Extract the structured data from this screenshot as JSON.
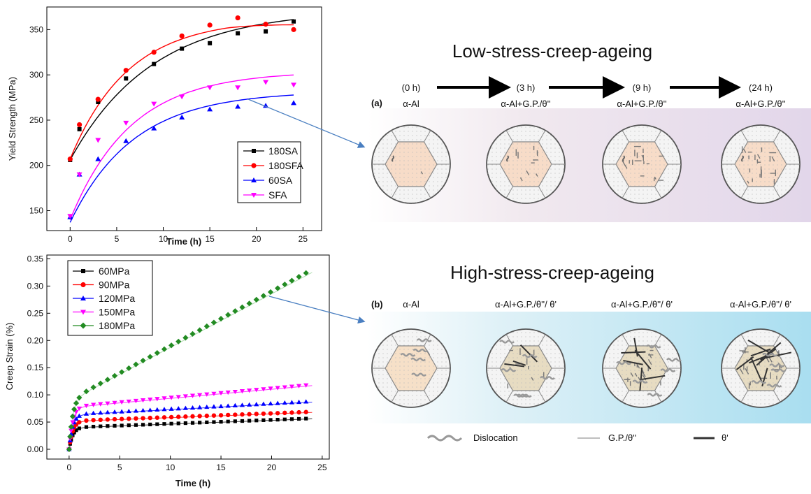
{
  "chart_data": [
    {
      "type": "scatter",
      "title": "",
      "xlabel": "Time (h)",
      "ylabel": "Yield Strength (MPa)",
      "xlim": [
        -2.5,
        27
      ],
      "ylim": [
        128,
        375
      ],
      "xticks": [
        0,
        5,
        10,
        15,
        20,
        25
      ],
      "yticks": [
        150,
        200,
        250,
        300,
        350
      ],
      "legend_position": "lower-right",
      "fitted_curves": true,
      "series": [
        {
          "name": "180SA",
          "color": "#000000",
          "marker": "square",
          "x": [
            0,
            1,
            3,
            6,
            9,
            12,
            15,
            18,
            21,
            24
          ],
          "y": [
            206,
            240,
            270,
            296,
            312,
            329,
            335,
            346,
            348,
            359
          ]
        },
        {
          "name": "180SFA",
          "color": "#ff0000",
          "marker": "circle",
          "x": [
            0,
            1,
            3,
            6,
            9,
            12,
            15,
            18,
            21,
            24
          ],
          "y": [
            207,
            245,
            273,
            305,
            325,
            343,
            355,
            363,
            356,
            350
          ]
        },
        {
          "name": "60SA",
          "color": "#0000ff",
          "marker": "triangle-up",
          "x": [
            0,
            1,
            3,
            6,
            9,
            12,
            15,
            18,
            21,
            24
          ],
          "y": [
            143,
            190,
            207,
            227,
            241,
            253,
            262,
            265,
            266,
            269
          ]
        },
        {
          "name": "SFA",
          "color": "#ff00ff",
          "marker": "triangle-down",
          "x": [
            0,
            1,
            3,
            6,
            9,
            12,
            15,
            18,
            21,
            24
          ],
          "y": [
            144,
            190,
            228,
            247,
            268,
            276,
            286,
            286,
            292,
            289
          ]
        }
      ]
    },
    {
      "type": "scatter",
      "title": "",
      "xlabel": "Time (h)",
      "ylabel": "Creep Strain (%)",
      "xlim": [
        -2.2,
        25.7
      ],
      "ylim": [
        -0.018,
        0.357
      ],
      "xticks": [
        0,
        5,
        10,
        15,
        20,
        25
      ],
      "yticks": [
        0.0,
        0.05,
        0.1,
        0.15,
        0.2,
        0.25,
        0.3,
        0.35
      ],
      "legend_position": "top-left",
      "fitted_curves": true,
      "series": [
        {
          "name": "60MPa",
          "color": "#000000",
          "marker": "square",
          "final": 0.057
        },
        {
          "name": "90MPa",
          "color": "#ff0000",
          "marker": "circle",
          "final": 0.068
        },
        {
          "name": "120MPa",
          "color": "#0000ff",
          "marker": "triangle-up",
          "final": 0.09
        },
        {
          "name": "150MPa",
          "color": "#ff00ff",
          "marker": "triangle-down",
          "final": 0.12
        },
        {
          "name": "180MPa",
          "color": "#228b22",
          "marker": "diamond",
          "final": 0.338
        }
      ]
    }
  ],
  "schematic": {
    "low_title": "Low-stress-creep-ageing",
    "high_title": "High-stress-creep-ageing",
    "time_labels": [
      "(0 h)",
      "(3 h)",
      "(9 h)",
      "(24 h)"
    ],
    "panel_a": "(a)",
    "panel_b": "(b)",
    "phases_a": [
      "α-Al",
      "α-Al+G.P./θ''",
      "α-Al+G.P./θ''",
      "α-Al+G.P./θ''"
    ],
    "phases_b": [
      "α-Al",
      "α-Al+G.P./θ''/ θ'",
      "α-Al+G.P./θ''/ θ'",
      "α-Al+G.P./θ''/ θ'"
    ],
    "legend": {
      "dislocation": "Dislocation",
      "gp": "G.P./θ''",
      "theta_prime": "θ'"
    }
  }
}
